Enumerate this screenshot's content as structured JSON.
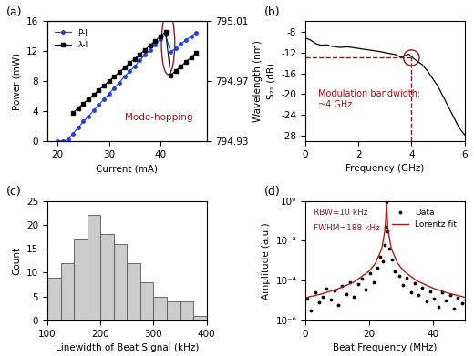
{
  "chart_data": [
    {
      "type": "line",
      "panel_label": "(a)",
      "x_label": "Current (mA)",
      "y_label": "Power (mW)",
      "y2_label": "Wavelength (nm)",
      "annotation": "Mode-hopping",
      "series": [
        {
          "name": "P-I",
          "color": "#1f3fe0",
          "marker": "o",
          "line_style": "solid",
          "x": [
            20,
            21,
            22,
            23,
            24,
            25,
            26,
            27,
            28,
            29,
            30,
            31,
            32,
            33,
            34,
            35,
            36,
            37,
            38,
            39,
            40,
            41,
            42,
            43,
            44,
            45,
            46,
            47
          ],
          "values": [
            0,
            0,
            0.2,
            1.0,
            1.8,
            2.6,
            3.3,
            4.1,
            4.8,
            5.6,
            6.3,
            7.1,
            7.8,
            8.6,
            9.3,
            10.0,
            10.8,
            11.5,
            12.2,
            12.9,
            13.6,
            14.2,
            11.9,
            12.4,
            13.0,
            13.5,
            14.0,
            14.5
          ]
        },
        {
          "name": "λ-I",
          "color": "#000000",
          "marker": "s",
          "line_style": "solid",
          "axis": "y2",
          "x": [
            23,
            24,
            25,
            26,
            27,
            28,
            29,
            30,
            31,
            32,
            33,
            34,
            35,
            36,
            37,
            38,
            39,
            40,
            41,
            42,
            43,
            44,
            45,
            46,
            47
          ],
          "values": [
            794.949,
            794.952,
            794.955,
            794.958,
            794.961,
            794.964,
            794.967,
            794.97,
            794.973,
            794.976,
            794.979,
            794.982,
            794.985,
            794.988,
            794.991,
            794.994,
            794.997,
            795.0,
            795.003,
            794.974,
            794.977,
            794.98,
            794.983,
            794.986,
            794.989
          ]
        }
      ],
      "xlim": [
        18,
        49
      ],
      "xticks": [
        20,
        30,
        40
      ],
      "ylim": [
        0,
        16
      ],
      "yticks": [
        0,
        4,
        8,
        12,
        16
      ],
      "y2lim": [
        794.93,
        795.01
      ],
      "y2ticks": [
        794.93,
        794.97,
        795.01
      ],
      "legend": "upper left"
    },
    {
      "type": "line",
      "panel_label": "(b)",
      "x_label": "Frequency (GHz)",
      "y_label": "S₂₁ (dB)",
      "annotation": "Modulation bandwidth:\n~4 GHz",
      "bandwidth_point": {
        "x": 4,
        "y": -13
      },
      "color": "#000000",
      "x": [
        0,
        0.2,
        0.4,
        0.6,
        0.8,
        1.0,
        1.3,
        1.6,
        2.0,
        2.4,
        2.8,
        3.0,
        3.2,
        3.4,
        3.6,
        3.8,
        3.9,
        4.0,
        4.1,
        4.2,
        4.4,
        4.6,
        4.8,
        5.0,
        5.2,
        5.4,
        5.6,
        5.8,
        6.0
      ],
      "values": [
        -9.2,
        -9.6,
        -10.3,
        -10.6,
        -10.5,
        -10.8,
        -11.0,
        -10.9,
        -11.2,
        -11.5,
        -11.8,
        -12.0,
        -12.2,
        -12.4,
        -12.9,
        -12.5,
        -12.3,
        -12.8,
        -13.2,
        -13.6,
        -14.3,
        -15.5,
        -17.0,
        -18.5,
        -20.5,
        -22.5,
        -24.5,
        -26.5,
        -27.8
      ],
      "xlim": [
        0,
        6
      ],
      "xticks": [
        0,
        2,
        4,
        6
      ],
      "ylim": [
        -29,
        -6
      ],
      "yticks": [
        -28,
        -24,
        -20,
        -16,
        -12,
        -8
      ]
    },
    {
      "type": "histogram",
      "panel_label": "(c)",
      "x_label": "Linewidth of Beat Signal (kHz)",
      "y_label": "Count",
      "color": "#cccccc",
      "bins": [
        100,
        125,
        150,
        175,
        200,
        225,
        250,
        275,
        300,
        325,
        350,
        375,
        400
      ],
      "values": [
        9,
        12,
        17,
        22,
        18,
        16,
        12,
        8,
        5,
        4,
        4,
        1
      ],
      "xlim": [
        100,
        400
      ],
      "xticks": [
        100,
        200,
        300,
        400
      ],
      "ylim": [
        0,
        25
      ],
      "yticks": [
        0,
        5,
        10,
        15,
        20,
        25
      ]
    },
    {
      "type": "scatter",
      "panel_label": "(d)",
      "x_label": "Beat Frequency (MHz)",
      "y_label": "Amplitude (a.u.)",
      "annotations": [
        "RBW=10 kHz",
        "FWHM=188 kHz"
      ],
      "log": "y",
      "series": [
        {
          "name": "Data",
          "type": "scatter",
          "color": "#000000",
          "marker": "o",
          "x": [
            0.6,
            1.8,
            3.1,
            4.2,
            5.5,
            6.7,
            7.9,
            9.2,
            10.4,
            11.6,
            12.9,
            14.1,
            15.3,
            16.6,
            17.8,
            19.0,
            20.3,
            21.5,
            22.7,
            23.6,
            24.4,
            25.0,
            25.3,
            25.5,
            25.8,
            26.3,
            27.1,
            28.2,
            29.4,
            30.7,
            31.9,
            33.1,
            34.4,
            35.6,
            36.8,
            38.1,
            39.3,
            40.5,
            41.8,
            43.0,
            44.2,
            45.5,
            46.7,
            47.9,
            49.2
          ],
          "values": [
            1.2e-05,
            3e-06,
            2.5e-05,
            8e-06,
            1.6e-05,
            4e-05,
            1.1e-05,
            3.2e-05,
            6e-06,
            5.5e-05,
            2.2e-05,
            8e-05,
            1.5e-05,
            6.5e-05,
            0.00012,
            3.5e-05,
            0.00024,
            8e-05,
            0.00045,
            0.0015,
            0.0009,
            0.006,
            0.05,
            0.9,
            0.03,
            0.004,
            0.0011,
            0.0003,
            0.00018,
            6e-05,
            0.00014,
            2.5e-05,
            7e-05,
            1.8e-05,
            4.5e-05,
            9e-06,
            3e-05,
            1.3e-05,
            5e-06,
            2.6e-05,
            1e-05,
            1.9e-05,
            4e-06,
            1.4e-05,
            7e-06
          ]
        },
        {
          "name": "Lorentz fit",
          "type": "line",
          "color": "#b01c1c",
          "line_style": "solid",
          "x": [
            0,
            5,
            10,
            15,
            20,
            22,
            24,
            25,
            25.1,
            25.3,
            25.5,
            25.7,
            25.9,
            26,
            27,
            29,
            31,
            35,
            40,
            45,
            50
          ],
          "values": [
            1.36e-05,
            2.1e-05,
            3.7e-05,
            8e-05,
            0.00029,
            0.00072,
            0.0039,
            0.034,
            0.052,
            0.18,
            1.0,
            0.18,
            0.052,
            0.034,
            0.0039,
            0.00072,
            0.00029,
            9.8e-05,
            4.2e-05,
            2.3e-05,
            1.47e-05
          ]
        }
      ],
      "xlim": [
        0,
        50
      ],
      "xticks": [
        0,
        20,
        40
      ],
      "ylim": [
        1e-06,
        1
      ],
      "yticks": [
        {
          "value": 1e-06,
          "label": "10⁻⁶"
        },
        {
          "value": 0.0001,
          "label": "10⁻⁴"
        },
        {
          "value": 0.01,
          "label": "10⁻²"
        },
        {
          "value": 1,
          "label": "10⁰"
        }
      ],
      "legend": "upper right"
    }
  ]
}
